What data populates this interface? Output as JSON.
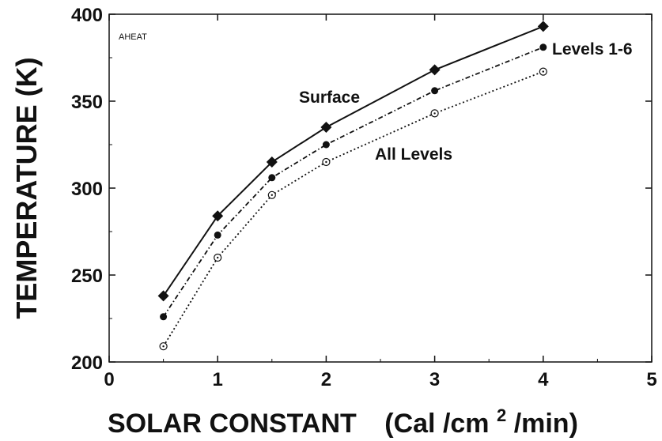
{
  "chart_data": {
    "type": "line",
    "corner_label": "AHEAT",
    "xlabel": {
      "main": "SOLAR CONSTANT",
      "unit_pre": "(Cal /cm",
      "unit_sup": "2",
      "unit_post": "/min)"
    },
    "ylabel": "TEMPERATURE  (K)",
    "xlim": [
      0,
      5
    ],
    "ylim": [
      200,
      400
    ],
    "x_ticks": [
      0,
      1,
      2,
      3,
      4,
      5
    ],
    "y_ticks": [
      200,
      250,
      300,
      350,
      400
    ],
    "x_tick_labels": [
      "0",
      "1",
      "2",
      "3",
      "4",
      "5"
    ],
    "y_tick_labels": [
      "200",
      "250",
      "300",
      "350",
      "400"
    ],
    "grid": false,
    "series": [
      {
        "name": "Surface",
        "marker": "diamond",
        "line_style": "solid",
        "x": [
          0.5,
          1.0,
          1.5,
          2.0,
          3.0,
          4.0
        ],
        "y": [
          238,
          284,
          315,
          335,
          368,
          393
        ]
      },
      {
        "name": "Levels 1-6",
        "marker": "filled-circle",
        "line_style": "dash-dot",
        "x": [
          0.5,
          1.0,
          1.5,
          2.0,
          3.0,
          4.0
        ],
        "y": [
          226,
          273,
          306,
          325,
          356,
          381
        ]
      },
      {
        "name": "All Levels",
        "marker": "open-circle-dot",
        "line_style": "dotted",
        "x": [
          0.5,
          1.0,
          1.5,
          2.0,
          3.0,
          4.0
        ],
        "y": [
          209,
          260,
          296,
          315,
          343,
          367
        ]
      }
    ],
    "annotations": [
      {
        "text": "Surface",
        "series": "Surface"
      },
      {
        "text": "Levels 1-6",
        "series": "Levels 1-6"
      },
      {
        "text": "All Levels",
        "series": "All Levels"
      }
    ]
  }
}
